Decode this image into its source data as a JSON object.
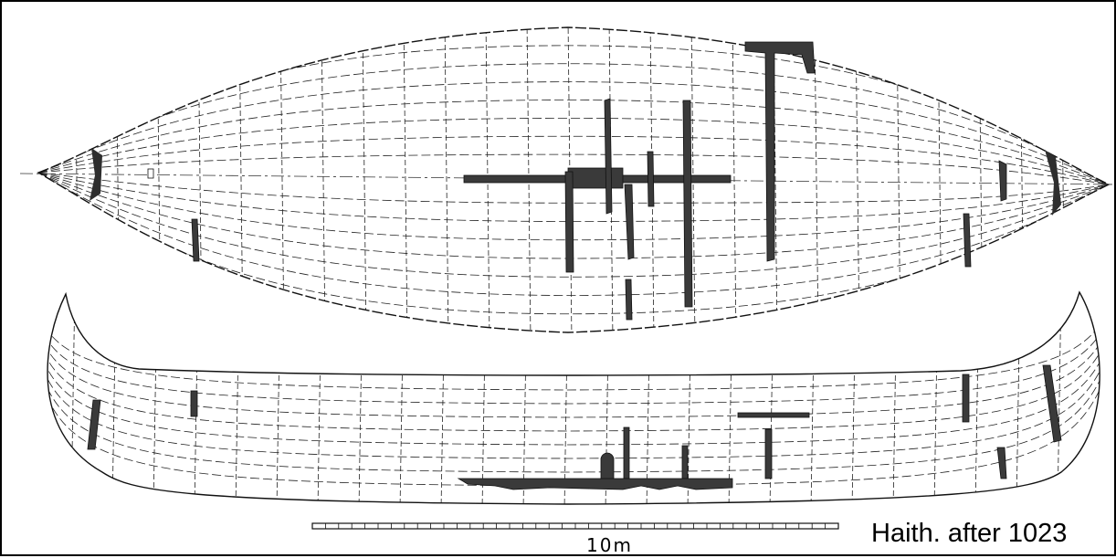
{
  "figure": {
    "scale_label": "10m",
    "credit": "Haith. after 1023"
  },
  "colors": {
    "line": "#222222",
    "timber": "#3a3a3a",
    "background": "#ffffff"
  }
}
